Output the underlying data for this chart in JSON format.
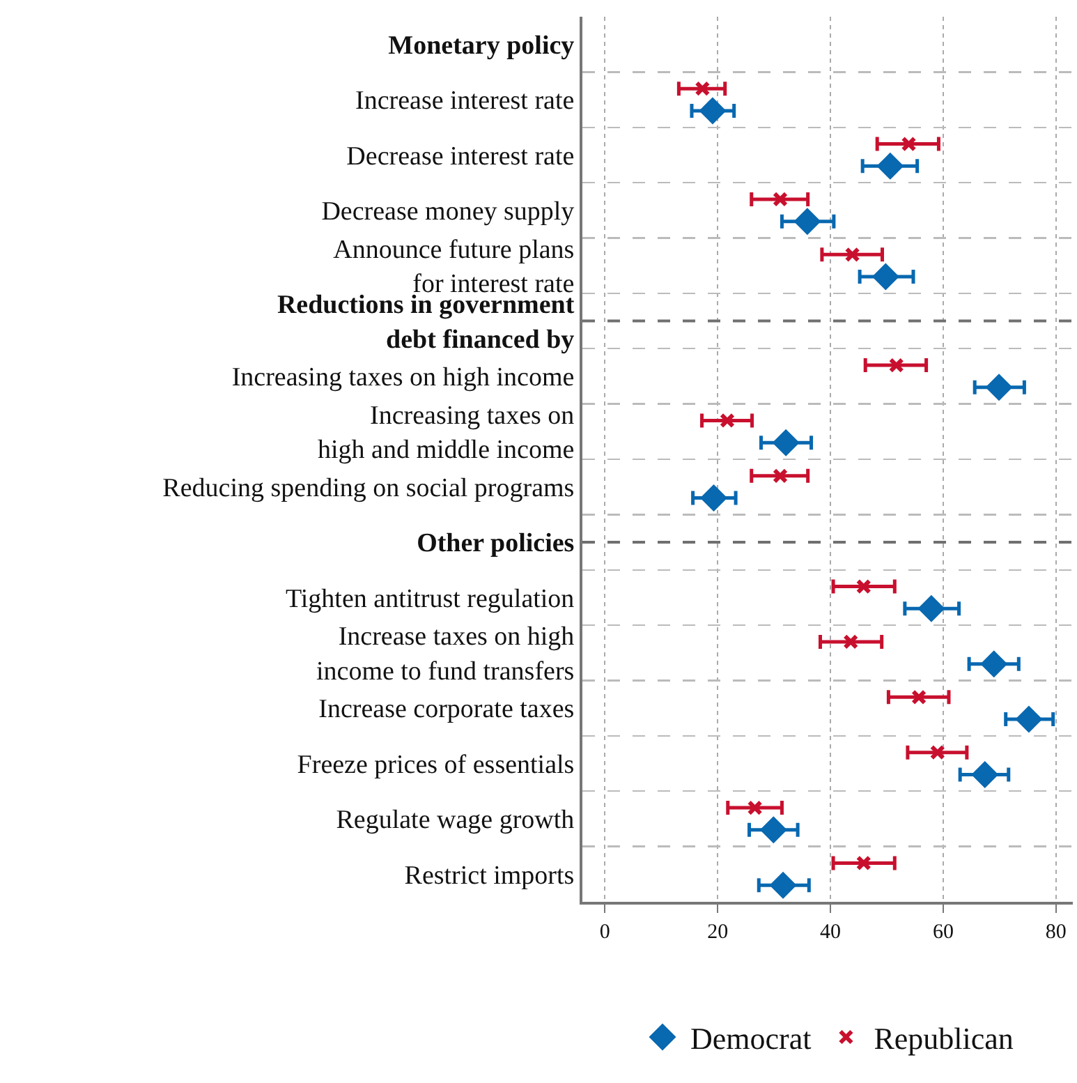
{
  "chart_data": {
    "type": "scatter",
    "categories": [
      "Monetary policy",
      "Increase interest rate",
      "Decrease interest rate",
      "Decrease money supply",
      "Announce future plans\nfor interest rate",
      "Reductions in government\ndebt financed by",
      "Increasing taxes on high income",
      "Increasing taxes on\nhigh and middle income",
      "Reducing spending on social programs",
      "Other policies",
      "Tighten antitrust regulation",
      "Increase taxes on high\nincome to fund transfers",
      "Increase corporate taxes",
      "Freeze prices of essentials",
      "Regulate wage growth",
      "Restrict imports"
    ],
    "series": [
      {
        "name": "Democrat",
        "color": "#0868b0",
        "marker": "diamond",
        "values": [
          null,
          19.1,
          50.6,
          35.9,
          49.8,
          null,
          69.9,
          32.1,
          19.3,
          null,
          57.9,
          69.0,
          75.2,
          67.4,
          29.9,
          31.6
        ],
        "errors": [
          null,
          [
            15.4,
            22.9
          ],
          [
            45.7,
            55.4
          ],
          [
            31.4,
            40.6
          ],
          [
            45.2,
            54.7
          ],
          null,
          [
            65.6,
            74.4
          ],
          [
            27.7,
            36.6
          ],
          [
            15.6,
            23.2
          ],
          null,
          [
            53.2,
            62.8
          ],
          [
            64.6,
            73.4
          ],
          [
            71.1,
            79.5
          ],
          [
            63.0,
            71.6
          ],
          [
            25.6,
            34.2
          ],
          [
            27.3,
            36.2
          ]
        ]
      },
      {
        "name": "Republican",
        "color": "#c8102e",
        "marker": "cross",
        "values": [
          null,
          17.3,
          53.9,
          31.1,
          43.9,
          null,
          51.7,
          21.7,
          31.1,
          null,
          45.9,
          43.6,
          55.7,
          59.0,
          26.6,
          45.9
        ],
        "errors": [
          null,
          [
            13.1,
            21.3
          ],
          [
            48.3,
            59.2
          ],
          [
            26.0,
            36.0
          ],
          [
            38.5,
            49.2
          ],
          null,
          [
            46.2,
            57.0
          ],
          [
            17.2,
            26.1
          ],
          [
            26.0,
            36.0
          ],
          null,
          [
            40.5,
            51.4
          ],
          [
            38.2,
            49.1
          ],
          [
            50.3,
            61.0
          ],
          [
            53.7,
            64.2
          ],
          [
            21.8,
            31.4
          ],
          [
            40.5,
            51.4
          ]
        ]
      }
    ],
    "orientation": "horizontal",
    "xlim": [
      -4,
      83
    ],
    "xticks": [
      0,
      20,
      40,
      60,
      80
    ],
    "grid": true,
    "legend": "bottom"
  }
}
